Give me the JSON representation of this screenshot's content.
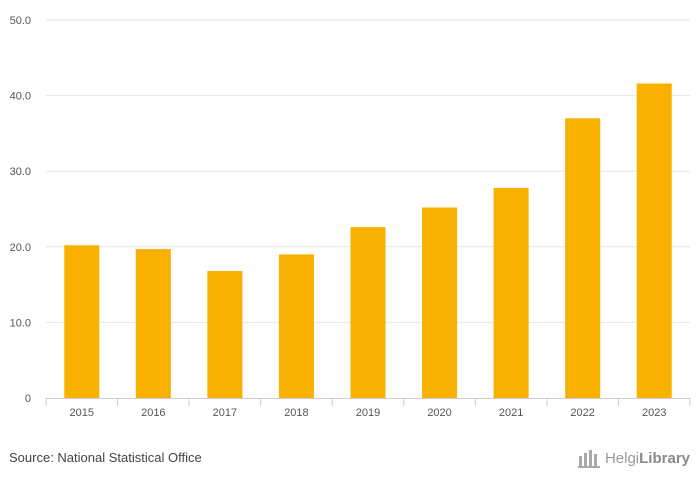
{
  "chart_data": {
    "type": "bar",
    "categories": [
      "2015",
      "2016",
      "2017",
      "2018",
      "2019",
      "2020",
      "2021",
      "2022",
      "2023"
    ],
    "values": [
      20.2,
      19.7,
      16.8,
      19.0,
      22.6,
      25.2,
      27.8,
      37.0,
      41.6
    ],
    "ylim": [
      0,
      50
    ],
    "yticks": [
      0,
      10,
      20,
      30,
      40,
      50
    ],
    "ytick_labels": [
      "0",
      "10.0",
      "20.0",
      "30.0",
      "40.0",
      "50.0"
    ],
    "title": "",
    "xlabel": "",
    "ylabel": "",
    "grid": true,
    "bar_color": "#f8b100"
  },
  "footer": {
    "source": "Source: National Statistical Office",
    "logo_text_light": "Helgi",
    "logo_text_bold": "Library"
  }
}
